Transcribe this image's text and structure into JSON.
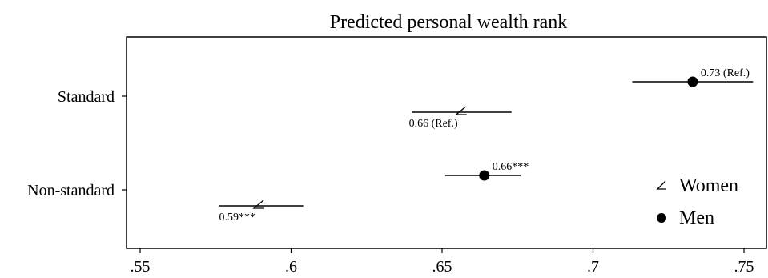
{
  "chart_data": {
    "type": "scatter",
    "title": "Predicted personal wealth rank",
    "xlabel": "",
    "ylabel": "",
    "xlim": [
      0.545,
      0.755
    ],
    "x_ticks": [
      {
        "value": 0.55,
        "label": ".55"
      },
      {
        "value": 0.6,
        "label": ".6"
      },
      {
        "value": 0.65,
        "label": ".65"
      },
      {
        "value": 0.7,
        "label": ".7"
      },
      {
        "value": 0.75,
        "label": ".75"
      }
    ],
    "categories": [
      "Standard",
      "Non-standard"
    ],
    "grid": false,
    "legend": "right",
    "series": [
      {
        "name": "Women",
        "marker": "angle",
        "color": "#000000",
        "points": [
          {
            "category": "Standard",
            "value": 0.656,
            "ci": [
              0.64,
              0.673
            ],
            "label": "0.66 (Ref.)"
          },
          {
            "category": "Non-standard",
            "value": 0.589,
            "ci": [
              0.576,
              0.604
            ],
            "label": "0.59***"
          }
        ]
      },
      {
        "name": "Men",
        "marker": "circle",
        "color": "#000000",
        "points": [
          {
            "category": "Standard",
            "value": 0.733,
            "ci": [
              0.713,
              0.753
            ],
            "label": "0.73 (Ref.)"
          },
          {
            "category": "Non-standard",
            "value": 0.664,
            "ci": [
              0.651,
              0.676
            ],
            "label": "0.66***"
          }
        ]
      }
    ]
  }
}
